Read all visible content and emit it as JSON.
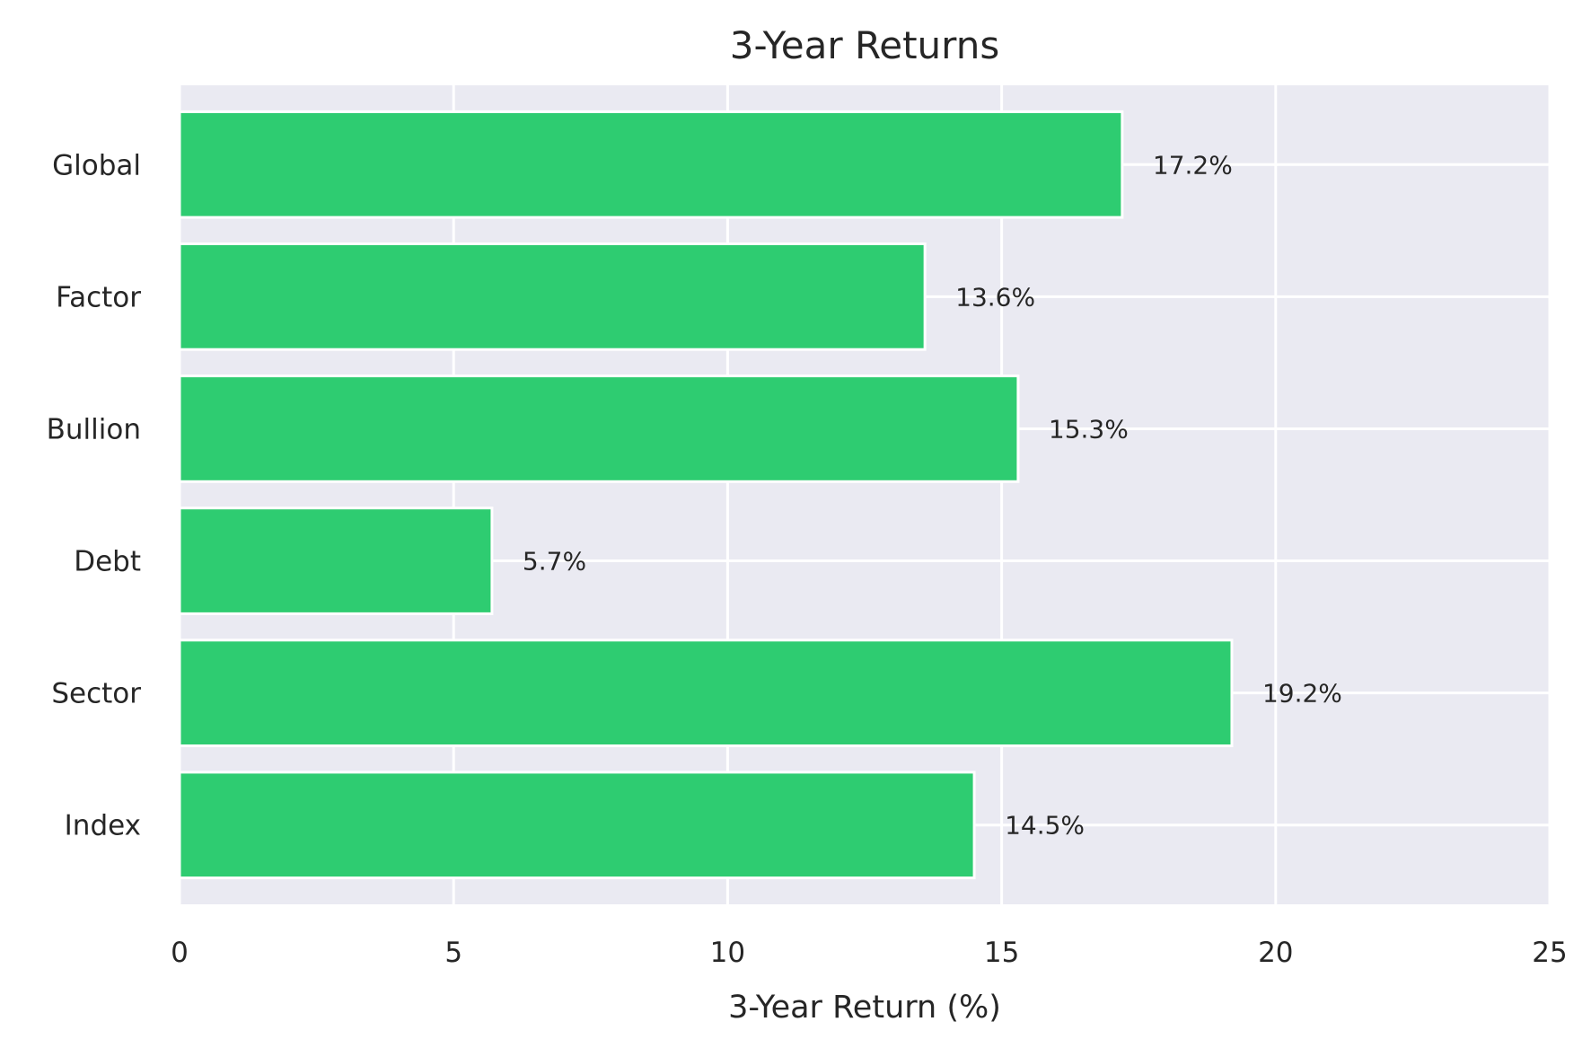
{
  "chart_data": {
    "type": "bar",
    "orientation": "horizontal",
    "title": "3-Year Returns",
    "xlabel": "3-Year Return (%)",
    "ylabel": "",
    "categories": [
      "Index",
      "Sector",
      "Debt",
      "Bullion",
      "Factor",
      "Global"
    ],
    "values": [
      14.5,
      19.2,
      5.7,
      15.3,
      13.6,
      17.2
    ],
    "value_labels": [
      "14.5%",
      "19.2%",
      "5.7%",
      "15.3%",
      "13.6%",
      "17.2%"
    ],
    "xlim": [
      0,
      25
    ],
    "xticks": [
      0,
      5,
      10,
      15,
      20,
      25
    ],
    "xtick_labels": [
      "0",
      "5",
      "10",
      "15",
      "20",
      "25"
    ],
    "grid": true,
    "colors": {
      "bar": "#2ecc71",
      "plot_background": "#eaeaf2",
      "grid": "#ffffff",
      "text": "#262626"
    }
  }
}
